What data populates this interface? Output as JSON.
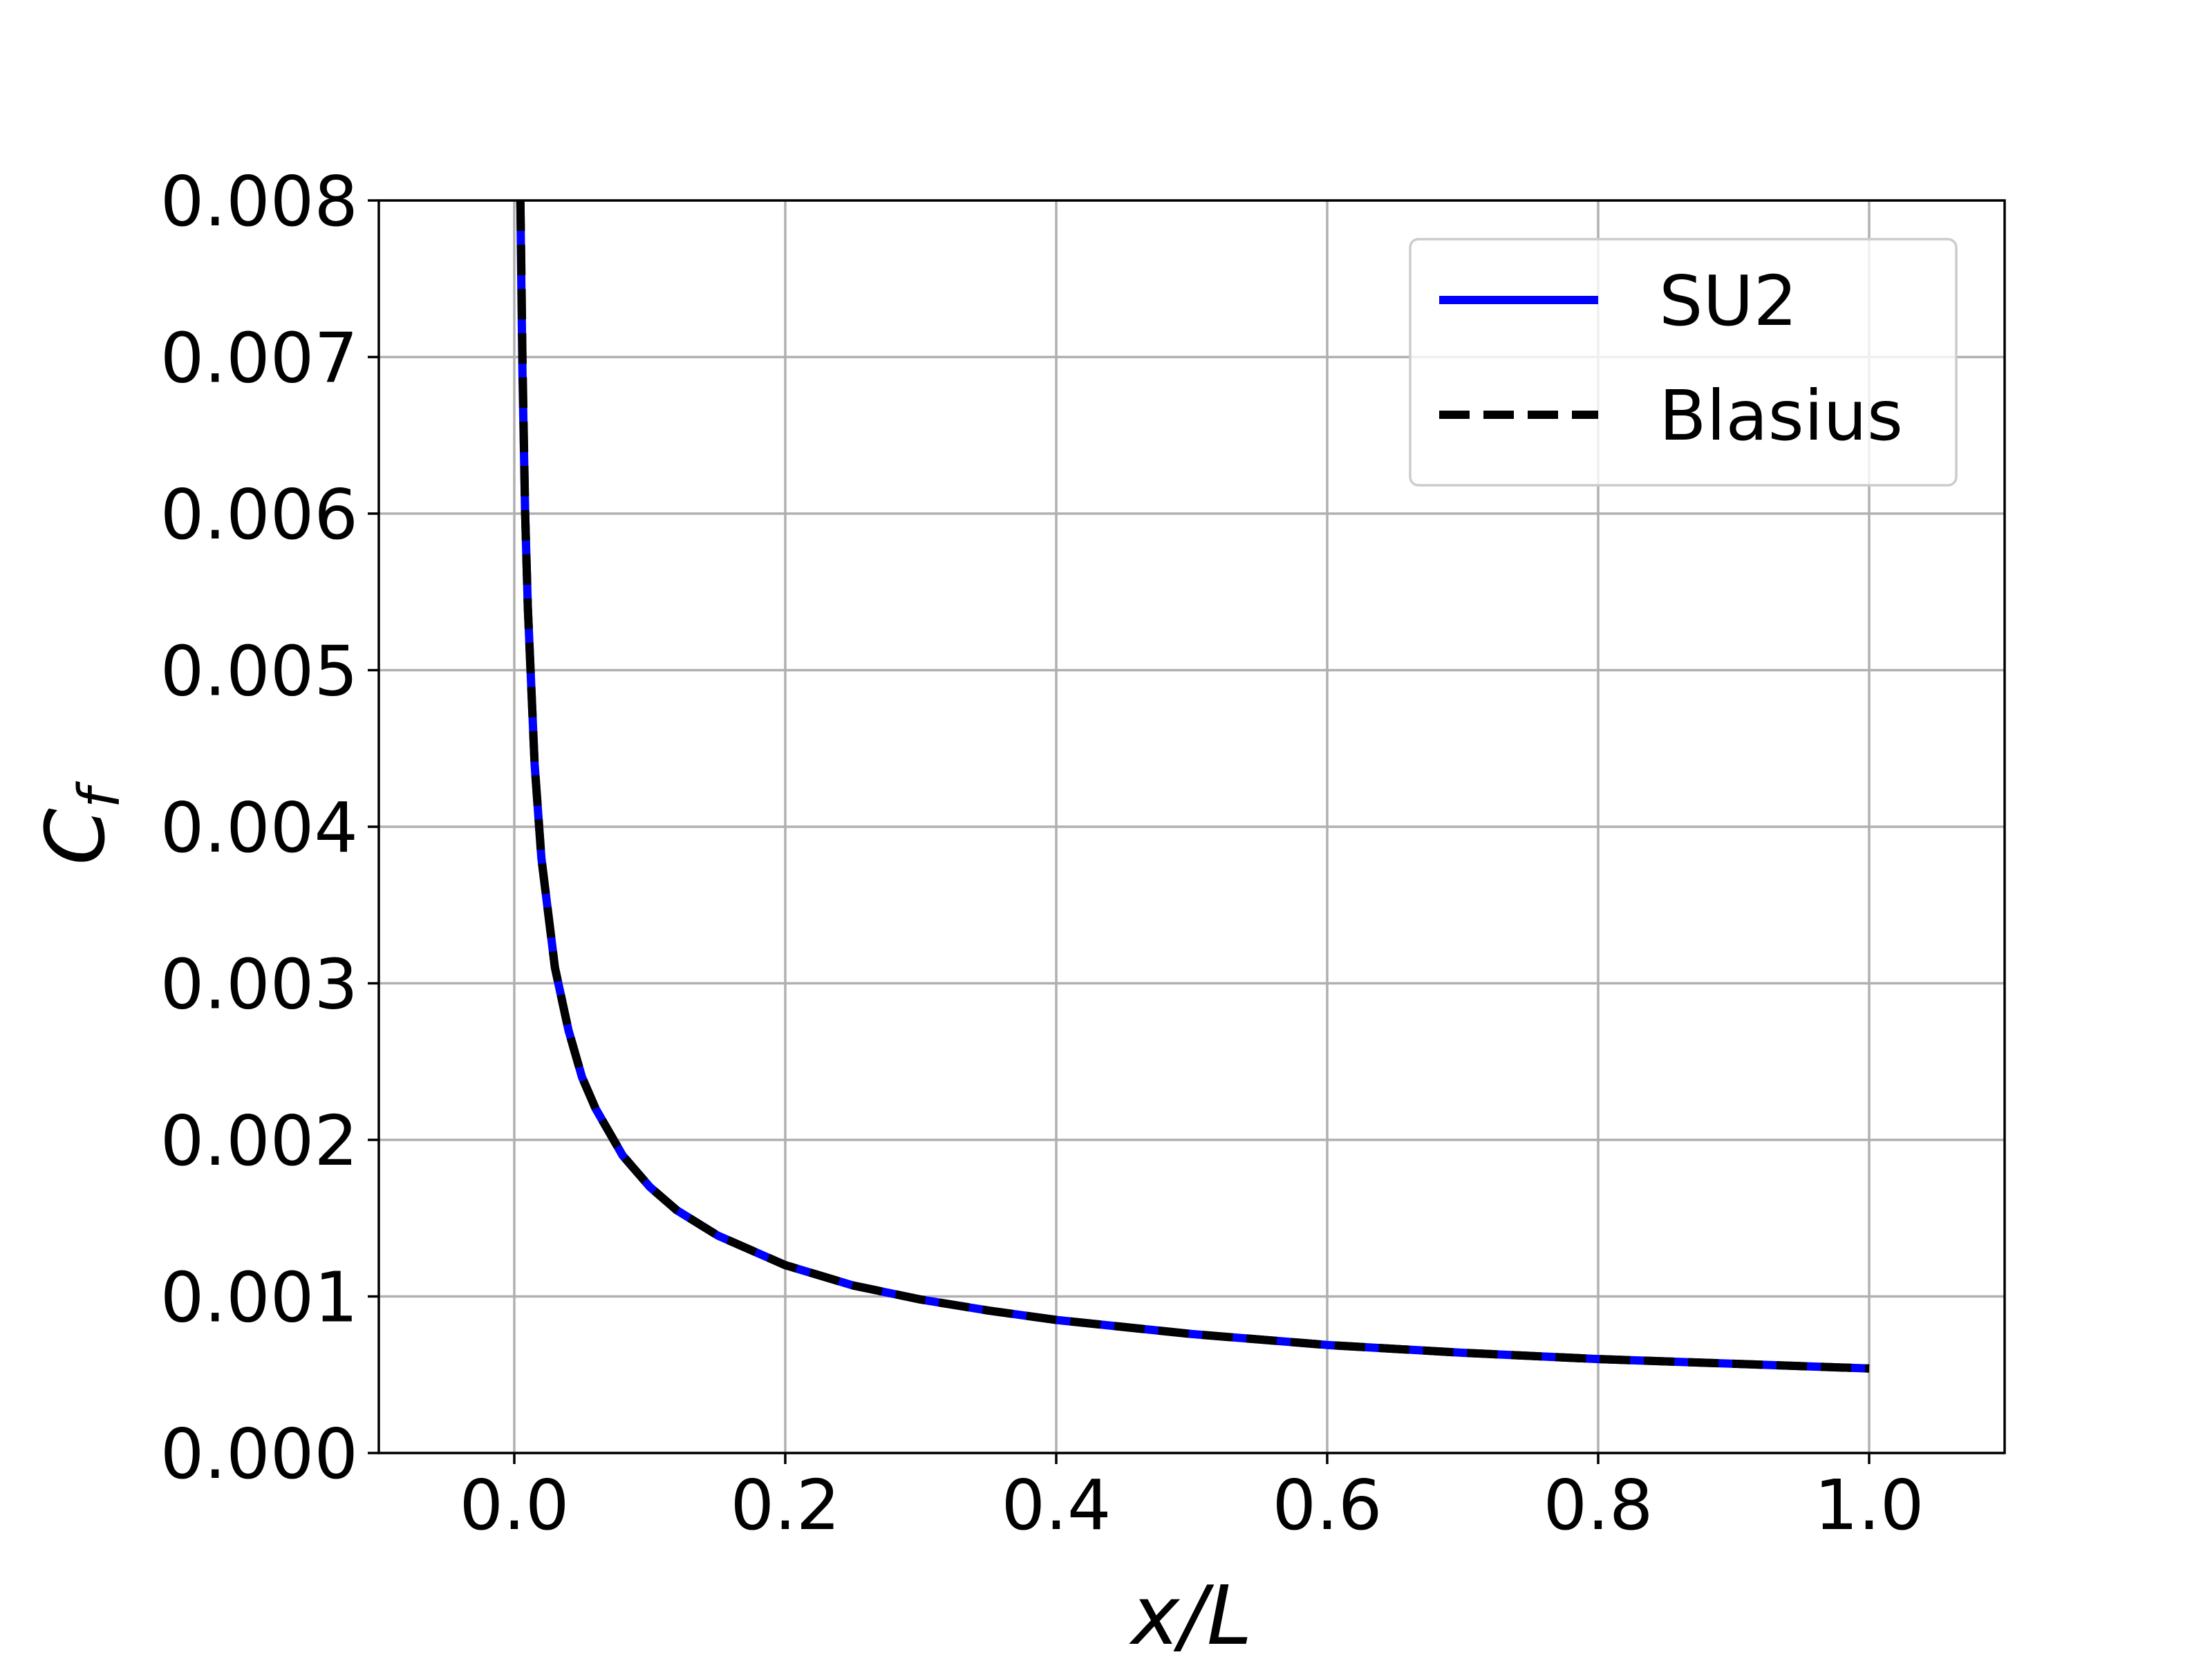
{
  "chart_data": {
    "type": "line",
    "title": "",
    "xlabel": "x/L",
    "ylabel": "Cf",
    "ylabel_main": "C",
    "ylabel_sub": "f",
    "xlim": [
      -0.1,
      1.1
    ],
    "ylim": [
      0.0,
      0.008
    ],
    "x_ticks": [
      0.0,
      0.2,
      0.4,
      0.6,
      0.8,
      1.0
    ],
    "x_tick_labels": [
      "0.0",
      "0.2",
      "0.4",
      "0.6",
      "0.8",
      "1.0"
    ],
    "y_ticks": [
      0.0,
      0.001,
      0.002,
      0.003,
      0.004,
      0.005,
      0.006,
      0.007,
      0.008
    ],
    "y_tick_labels": [
      "0.000",
      "0.001",
      "0.002",
      "0.003",
      "0.004",
      "0.005",
      "0.006",
      "0.007",
      "0.008"
    ],
    "grid": true,
    "legend_position": "top-right",
    "series": [
      {
        "name": "SU2",
        "color": "#0000ff",
        "style": "solid",
        "x": [
          0.0045,
          0.005,
          0.006,
          0.008,
          0.01,
          0.015,
          0.02,
          0.03,
          0.04,
          0.05,
          0.06,
          0.08,
          0.1,
          0.12,
          0.15,
          0.2,
          0.25,
          0.3,
          0.35,
          0.4,
          0.5,
          0.6,
          0.7,
          0.8,
          0.9,
          1.0
        ],
        "y": [
          0.008,
          0.0076,
          0.0069,
          0.006,
          0.0054,
          0.0044,
          0.0038,
          0.0031,
          0.0027,
          0.0024,
          0.0022,
          0.0019,
          0.0017,
          0.00155,
          0.00139,
          0.0012,
          0.00107,
          0.00098,
          0.00091,
          0.00085,
          0.00076,
          0.00069,
          0.00064,
          0.0006,
          0.00057,
          0.00054
        ]
      },
      {
        "name": "Blasius",
        "color": "#000000",
        "style": "dashed",
        "x": [
          0.0045,
          0.005,
          0.006,
          0.008,
          0.01,
          0.015,
          0.02,
          0.03,
          0.04,
          0.05,
          0.06,
          0.08,
          0.1,
          0.12,
          0.15,
          0.2,
          0.25,
          0.3,
          0.35,
          0.4,
          0.5,
          0.6,
          0.7,
          0.8,
          0.9,
          1.0
        ],
        "y": [
          0.008,
          0.0077,
          0.007,
          0.006,
          0.0054,
          0.0044,
          0.0038,
          0.0031,
          0.0027,
          0.0024,
          0.0022,
          0.0019,
          0.0017,
          0.00155,
          0.00139,
          0.0012,
          0.00107,
          0.00098,
          0.00091,
          0.00085,
          0.00076,
          0.00069,
          0.00064,
          0.0006,
          0.00057,
          0.00054
        ]
      }
    ]
  }
}
